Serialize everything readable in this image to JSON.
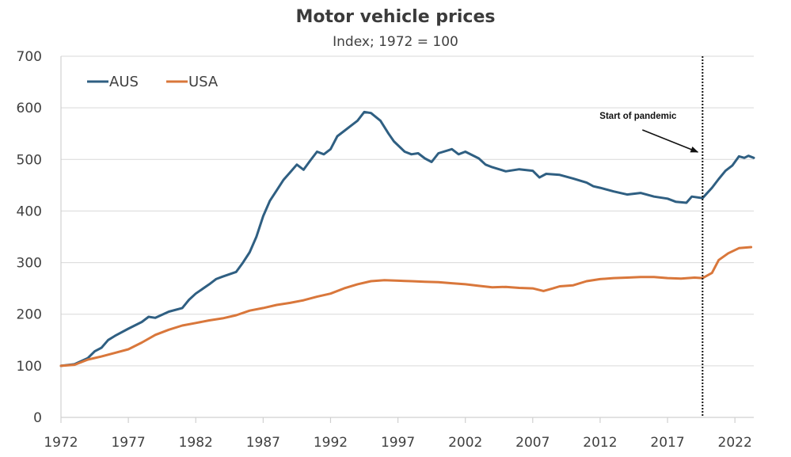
{
  "chart_data": {
    "type": "line",
    "title": "Motor vehicle prices",
    "subtitle": "Index; 1972  = 100",
    "xlabel": "",
    "ylabel": "",
    "xlim": [
      1972,
      2023.4
    ],
    "ylim": [
      0,
      700
    ],
    "x_ticks": [
      1972,
      1977,
      1982,
      1987,
      1992,
      1997,
      2002,
      2007,
      2012,
      2017,
      2022
    ],
    "x_tick_labels": [
      "1972",
      "1977",
      "1982",
      "1987",
      "1992",
      "1997",
      "2002",
      "2007",
      "2012",
      "2017",
      "2022"
    ],
    "y_ticks": [
      0,
      100,
      200,
      300,
      400,
      500,
      600,
      700
    ],
    "y_tick_labels": [
      "0",
      "100",
      "200",
      "300",
      "400",
      "500",
      "600",
      "700"
    ],
    "grid": "horizontal",
    "legend": {
      "placement": "top-left",
      "orientation": "horizontal"
    },
    "annotation": {
      "text": "Start of pandemic",
      "x": 2019.6,
      "style": "dotted vertical line with arrow"
    },
    "series": [
      {
        "name": "AUS",
        "color": "#2f5f82",
        "points": [
          [
            1972,
            100
          ],
          [
            1973,
            103
          ],
          [
            1974,
            115
          ],
          [
            1974.5,
            128
          ],
          [
            1975,
            135
          ],
          [
            1975.5,
            150
          ],
          [
            1976,
            158
          ],
          [
            1977,
            172
          ],
          [
            1978,
            185
          ],
          [
            1978.5,
            195
          ],
          [
            1979,
            193
          ],
          [
            1980,
            205
          ],
          [
            1981,
            212
          ],
          [
            1981.5,
            228
          ],
          [
            1982,
            240
          ],
          [
            1983,
            258
          ],
          [
            1983.5,
            268
          ],
          [
            1984,
            273
          ],
          [
            1985,
            282
          ],
          [
            1985.5,
            300
          ],
          [
            1986,
            320
          ],
          [
            1986.5,
            350
          ],
          [
            1987,
            390
          ],
          [
            1987.5,
            420
          ],
          [
            1988,
            440
          ],
          [
            1988.5,
            460
          ],
          [
            1989,
            475
          ],
          [
            1989.5,
            490
          ],
          [
            1990,
            480
          ],
          [
            1990.5,
            498
          ],
          [
            1991,
            515
          ],
          [
            1991.5,
            510
          ],
          [
            1992,
            520
          ],
          [
            1992.5,
            545
          ],
          [
            1993,
            555
          ],
          [
            1993.5,
            565
          ],
          [
            1994,
            575
          ],
          [
            1994.5,
            592
          ],
          [
            1995,
            590
          ],
          [
            1995.7,
            575
          ],
          [
            1996.3,
            550
          ],
          [
            1996.7,
            535
          ],
          [
            1997.5,
            515
          ],
          [
            1998,
            510
          ],
          [
            1998.5,
            512
          ],
          [
            1999,
            502
          ],
          [
            1999.5,
            495
          ],
          [
            2000,
            512
          ],
          [
            2001,
            520
          ],
          [
            2001.5,
            510
          ],
          [
            2002,
            515
          ],
          [
            2003,
            502
          ],
          [
            2003.5,
            490
          ],
          [
            2004,
            485
          ],
          [
            2005,
            477
          ],
          [
            2006,
            481
          ],
          [
            2007,
            478
          ],
          [
            2007.5,
            465
          ],
          [
            2008,
            472
          ],
          [
            2009,
            470
          ],
          [
            2010,
            463
          ],
          [
            2011,
            455
          ],
          [
            2011.5,
            448
          ],
          [
            2012,
            445
          ],
          [
            2013,
            438
          ],
          [
            2014,
            432
          ],
          [
            2015,
            435
          ],
          [
            2016,
            428
          ],
          [
            2017,
            424
          ],
          [
            2017.6,
            418
          ],
          [
            2018.4,
            416
          ],
          [
            2018.8,
            428
          ],
          [
            2019.6,
            425
          ],
          [
            2020.3,
            445
          ],
          [
            2020.8,
            462
          ],
          [
            2021.3,
            478
          ],
          [
            2021.8,
            488
          ],
          [
            2022.3,
            506
          ],
          [
            2022.7,
            503
          ],
          [
            2023.0,
            507
          ],
          [
            2023.4,
            503
          ]
        ]
      },
      {
        "name": "USA",
        "color": "#d9773b",
        "points": [
          [
            1972,
            100
          ],
          [
            1973,
            102
          ],
          [
            1974,
            112
          ],
          [
            1975,
            118
          ],
          [
            1976,
            125
          ],
          [
            1977,
            132
          ],
          [
            1978,
            145
          ],
          [
            1979,
            160
          ],
          [
            1980,
            170
          ],
          [
            1981,
            178
          ],
          [
            1982,
            183
          ],
          [
            1983,
            188
          ],
          [
            1984,
            192
          ],
          [
            1985,
            198
          ],
          [
            1986,
            207
          ],
          [
            1987,
            212
          ],
          [
            1988,
            218
          ],
          [
            1989,
            222
          ],
          [
            1990,
            227
          ],
          [
            1991,
            234
          ],
          [
            1992,
            240
          ],
          [
            1993,
            250
          ],
          [
            1994,
            258
          ],
          [
            1995,
            264
          ],
          [
            1996,
            266
          ],
          [
            1997,
            265
          ],
          [
            1998,
            264
          ],
          [
            1999,
            263
          ],
          [
            2000,
            262
          ],
          [
            2001,
            260
          ],
          [
            2002,
            258
          ],
          [
            2003,
            255
          ],
          [
            2004,
            252
          ],
          [
            2005,
            253
          ],
          [
            2006,
            251
          ],
          [
            2007,
            250
          ],
          [
            2007.8,
            245
          ],
          [
            2008.5,
            250
          ],
          [
            2009,
            254
          ],
          [
            2010,
            256
          ],
          [
            2011,
            264
          ],
          [
            2012,
            268
          ],
          [
            2013,
            270
          ],
          [
            2014,
            271
          ],
          [
            2015,
            272
          ],
          [
            2016,
            272
          ],
          [
            2017,
            270
          ],
          [
            2018,
            269
          ],
          [
            2019,
            271
          ],
          [
            2019.6,
            270
          ],
          [
            2020.3,
            280
          ],
          [
            2020.8,
            305
          ],
          [
            2021.5,
            318
          ],
          [
            2022.3,
            328
          ],
          [
            2023.2,
            330
          ]
        ]
      }
    ]
  }
}
